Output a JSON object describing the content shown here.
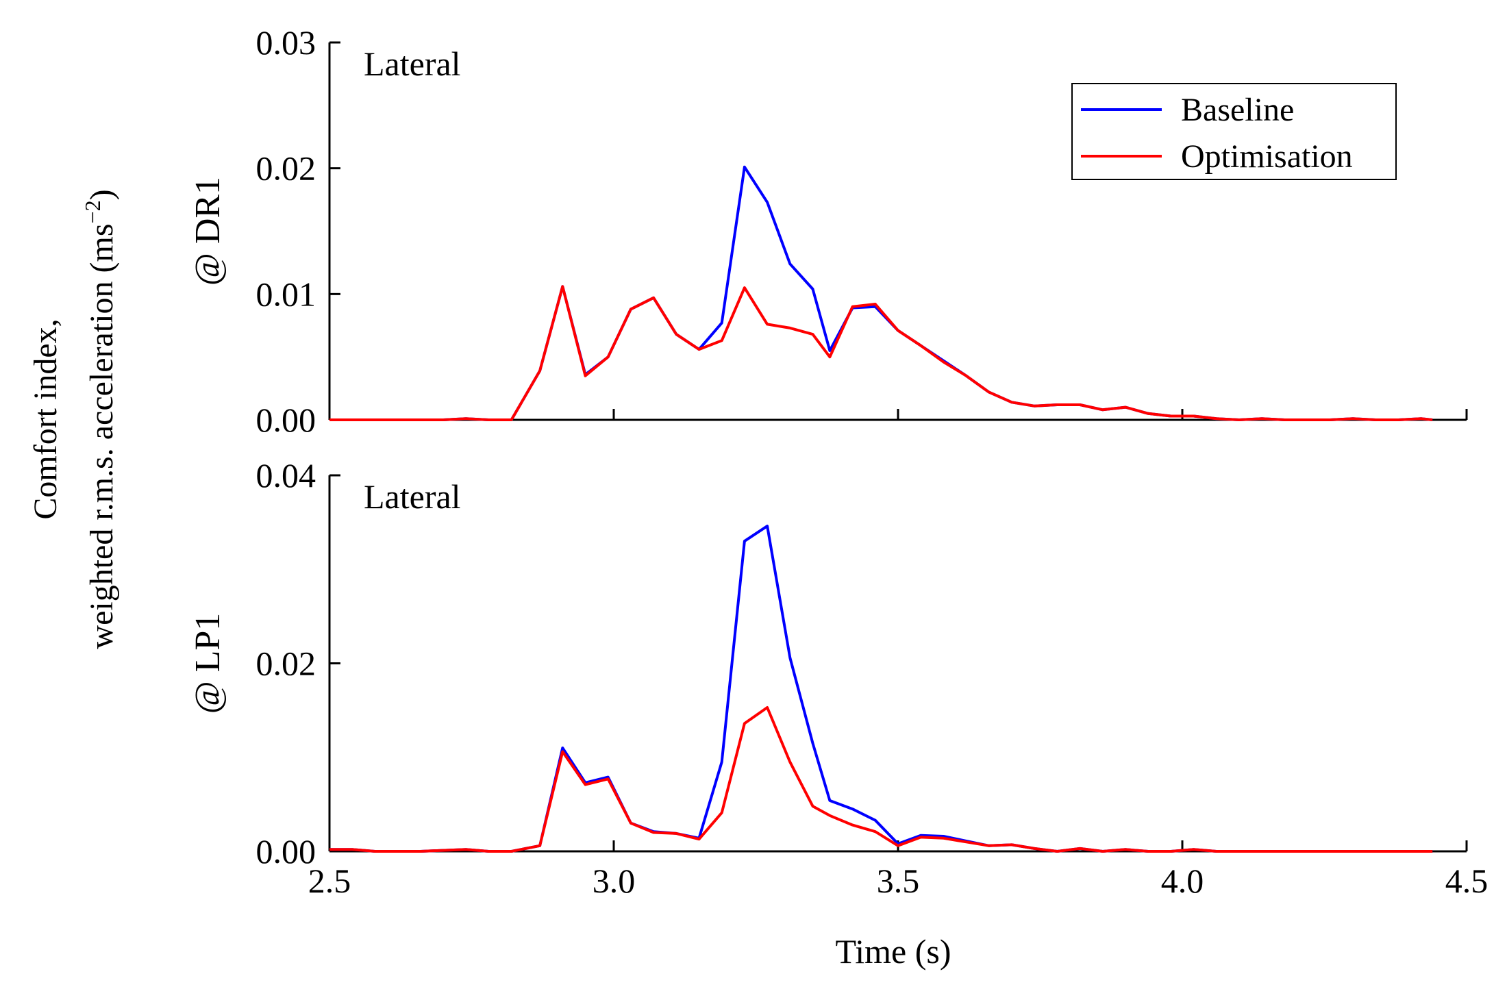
{
  "figure": {
    "ylabel_line1": "Comfort index,",
    "ylabel_line2_prefix": "weighted r.m.s. acceleration (ms",
    "ylabel_line2_exponent": "−2",
    "ylabel_line2_suffix": ")",
    "xlabel": "Time (s)"
  },
  "legend": {
    "position": "top-right of upper panel",
    "items": [
      {
        "label": "Baseline",
        "color": "#0000ff"
      },
      {
        "label": "Optimisation",
        "color": "#ff0000"
      }
    ]
  },
  "chart_data": [
    {
      "type": "line",
      "panel_label": "@ DR1",
      "annotation": "Lateral",
      "xlabel": "Time (s)",
      "xlim": [
        2.5,
        4.5
      ],
      "ylim": [
        0,
        0.03
      ],
      "x_ticks": [
        "2.5",
        "3.0",
        "3.5",
        "4.0",
        "4.5"
      ],
      "y_ticks": [
        "0.00",
        "0.01",
        "0.02",
        "0.03"
      ],
      "x_tick_labels_shown": false,
      "series": [
        {
          "name": "Baseline",
          "color": "#0000ff",
          "x": [
            2.5,
            2.54,
            2.58,
            2.62,
            2.66,
            2.7,
            2.74,
            2.78,
            2.82,
            2.87,
            2.91,
            2.95,
            2.99,
            3.03,
            3.07,
            3.11,
            3.15,
            3.19,
            3.23,
            3.27,
            3.31,
            3.35,
            3.38,
            3.42,
            3.46,
            3.5,
            3.54,
            3.58,
            3.62,
            3.66,
            3.7,
            3.74,
            3.78,
            3.82,
            3.86,
            3.9,
            3.94,
            3.98,
            4.02,
            4.06,
            4.1,
            4.14,
            4.18,
            4.22,
            4.26,
            4.3,
            4.34,
            4.38,
            4.42,
            4.44
          ],
          "y": [
            0.0,
            0.0,
            0.0,
            0.0,
            0.0,
            0.0,
            0.0001,
            0.0,
            0.0,
            0.0039,
            0.0106,
            0.0036,
            0.005,
            0.0088,
            0.0097,
            0.0068,
            0.0056,
            0.0077,
            0.0201,
            0.0173,
            0.0124,
            0.0104,
            0.0055,
            0.0089,
            0.009,
            0.0071,
            0.0059,
            0.0047,
            0.0035,
            0.0022,
            0.0014,
            0.0011,
            0.0012,
            0.0012,
            0.0008,
            0.001,
            0.0005,
            0.0003,
            0.0003,
            0.0001,
            0.0,
            0.0001,
            0.0,
            0.0,
            0.0,
            0.0001,
            0.0,
            0.0,
            0.0001,
            0.0
          ]
        },
        {
          "name": "Optimisation",
          "color": "#ff0000",
          "x": [
            2.5,
            2.54,
            2.58,
            2.62,
            2.66,
            2.7,
            2.74,
            2.78,
            2.82,
            2.87,
            2.91,
            2.95,
            2.99,
            3.03,
            3.07,
            3.11,
            3.15,
            3.19,
            3.23,
            3.27,
            3.31,
            3.35,
            3.38,
            3.42,
            3.46,
            3.5,
            3.54,
            3.58,
            3.62,
            3.66,
            3.7,
            3.74,
            3.78,
            3.82,
            3.86,
            3.9,
            3.94,
            3.98,
            4.02,
            4.06,
            4.1,
            4.14,
            4.18,
            4.22,
            4.26,
            4.3,
            4.34,
            4.38,
            4.42,
            4.44
          ],
          "y": [
            0.0,
            0.0,
            0.0,
            0.0,
            0.0,
            0.0,
            0.0001,
            0.0,
            0.0,
            0.0039,
            0.0106,
            0.0035,
            0.005,
            0.0088,
            0.0097,
            0.0068,
            0.0056,
            0.0063,
            0.0105,
            0.0076,
            0.0073,
            0.0068,
            0.005,
            0.009,
            0.0092,
            0.0071,
            0.0059,
            0.0046,
            0.0035,
            0.0022,
            0.0014,
            0.0011,
            0.0012,
            0.0012,
            0.0008,
            0.001,
            0.0005,
            0.0003,
            0.0003,
            0.0001,
            0.0,
            0.0001,
            0.0,
            0.0,
            0.0,
            0.0001,
            0.0,
            0.0,
            0.0001,
            0.0
          ]
        }
      ]
    },
    {
      "type": "line",
      "panel_label": "@ LP1",
      "annotation": "Lateral",
      "xlabel": "Time (s)",
      "xlim": [
        2.5,
        4.5
      ],
      "ylim": [
        0,
        0.04
      ],
      "x_ticks": [
        "2.5",
        "3.0",
        "3.5",
        "4.0",
        "4.5"
      ],
      "y_ticks": [
        "0.00",
        "0.02",
        "0.04"
      ],
      "x_tick_labels_shown": true,
      "series": [
        {
          "name": "Baseline",
          "color": "#0000ff",
          "x": [
            2.5,
            2.54,
            2.58,
            2.62,
            2.66,
            2.7,
            2.74,
            2.78,
            2.82,
            2.87,
            2.91,
            2.95,
            2.99,
            3.03,
            3.07,
            3.11,
            3.15,
            3.19,
            3.23,
            3.27,
            3.31,
            3.35,
            3.38,
            3.42,
            3.46,
            3.5,
            3.54,
            3.58,
            3.62,
            3.66,
            3.7,
            3.74,
            3.78,
            3.82,
            3.86,
            3.9,
            3.94,
            3.98,
            4.02,
            4.06,
            4.1,
            4.14,
            4.18,
            4.22,
            4.26,
            4.3,
            4.34,
            4.38,
            4.42,
            4.44
          ],
          "y": [
            0.0002,
            0.0002,
            0.0,
            0.0,
            0.0,
            0.0001,
            0.0002,
            0.0,
            0.0,
            0.0006,
            0.011,
            0.0073,
            0.0079,
            0.003,
            0.0021,
            0.0019,
            0.0014,
            0.0095,
            0.033,
            0.0346,
            0.0206,
            0.0115,
            0.0054,
            0.0045,
            0.0033,
            0.0008,
            0.0017,
            0.0016,
            0.0011,
            0.0006,
            0.0007,
            0.0003,
            0.0,
            0.0003,
            0.0,
            0.0002,
            0.0,
            0.0,
            0.0002,
            0.0,
            0.0,
            0.0,
            0.0,
            0.0,
            0.0,
            0.0,
            0.0,
            0.0,
            0.0,
            0.0
          ]
        },
        {
          "name": "Optimisation",
          "color": "#ff0000",
          "x": [
            2.5,
            2.54,
            2.58,
            2.62,
            2.66,
            2.7,
            2.74,
            2.78,
            2.82,
            2.87,
            2.91,
            2.95,
            2.99,
            3.03,
            3.07,
            3.11,
            3.15,
            3.19,
            3.23,
            3.27,
            3.31,
            3.35,
            3.38,
            3.42,
            3.46,
            3.5,
            3.54,
            3.58,
            3.62,
            3.66,
            3.7,
            3.74,
            3.78,
            3.82,
            3.86,
            3.9,
            3.94,
            3.98,
            4.02,
            4.06,
            4.1,
            4.14,
            4.18,
            4.22,
            4.26,
            4.3,
            4.34,
            4.38,
            4.42,
            4.44
          ],
          "y": [
            0.0002,
            0.0002,
            0.0,
            0.0,
            0.0,
            0.0001,
            0.0002,
            0.0,
            0.0,
            0.0006,
            0.0106,
            0.0071,
            0.0077,
            0.003,
            0.002,
            0.0019,
            0.0013,
            0.0041,
            0.0136,
            0.0153,
            0.0095,
            0.0048,
            0.0038,
            0.0028,
            0.0021,
            0.0006,
            0.0015,
            0.0014,
            0.001,
            0.0006,
            0.0007,
            0.0003,
            0.0,
            0.0003,
            0.0,
            0.0002,
            0.0,
            0.0,
            0.0002,
            0.0,
            0.0,
            0.0,
            0.0,
            0.0,
            0.0,
            0.0,
            0.0,
            0.0,
            0.0,
            0.0
          ]
        }
      ]
    }
  ]
}
